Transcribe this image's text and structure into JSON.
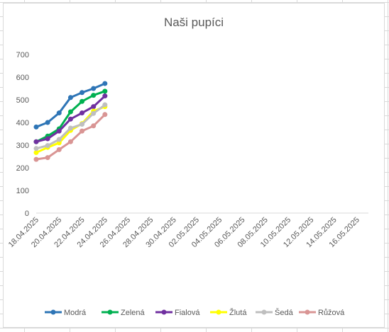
{
  "chart_data": {
    "type": "line",
    "title": "Naši pupíci",
    "xlabel": "",
    "ylabel": "",
    "ylim": [
      0,
      700
    ],
    "yticks": [
      0,
      100,
      200,
      300,
      400,
      500,
      600,
      700
    ],
    "xlim": [
      "18.04.2025",
      "17.05.2025"
    ],
    "xtick_labels": [
      "18.04.2025",
      "20.04.2025",
      "22.04.2025",
      "24.04.2025",
      "26.04.2025",
      "28.04.2025",
      "30.04.2025",
      "02.05.2025",
      "04.05.2025",
      "06.05.2025",
      "08.05.2025",
      "10.05.2025",
      "12.05.2025",
      "14.05.2025",
      "16.05.2025"
    ],
    "x": [
      "18.04.2025",
      "19.04.2025",
      "20.04.2025",
      "21.04.2025",
      "22.04.2025",
      "23.04.2025",
      "24.04.2025"
    ],
    "grid": false,
    "legend_position": "bottom",
    "series": [
      {
        "name": "Modrá",
        "color": "#2E75B6",
        "values": [
          380,
          400,
          442,
          510,
          532,
          550,
          572
        ]
      },
      {
        "name": "Zelená",
        "color": "#00B050",
        "values": [
          315,
          340,
          372,
          447,
          493,
          520,
          538
        ]
      },
      {
        "name": "Fialová",
        "color": "#7030A0",
        "values": [
          315,
          328,
          362,
          415,
          442,
          470,
          517
        ]
      },
      {
        "name": "Žlutá",
        "color": "#FFFF00",
        "values": [
          267,
          290,
          310,
          365,
          395,
          450,
          470
        ]
      },
      {
        "name": "Šedá",
        "color": "#BFBFBF",
        "values": [
          285,
          298,
          325,
          375,
          392,
          440,
          478
        ]
      },
      {
        "name": "Růžová",
        "color": "#D99594",
        "values": [
          237,
          245,
          280,
          315,
          362,
          385,
          435
        ]
      }
    ]
  }
}
